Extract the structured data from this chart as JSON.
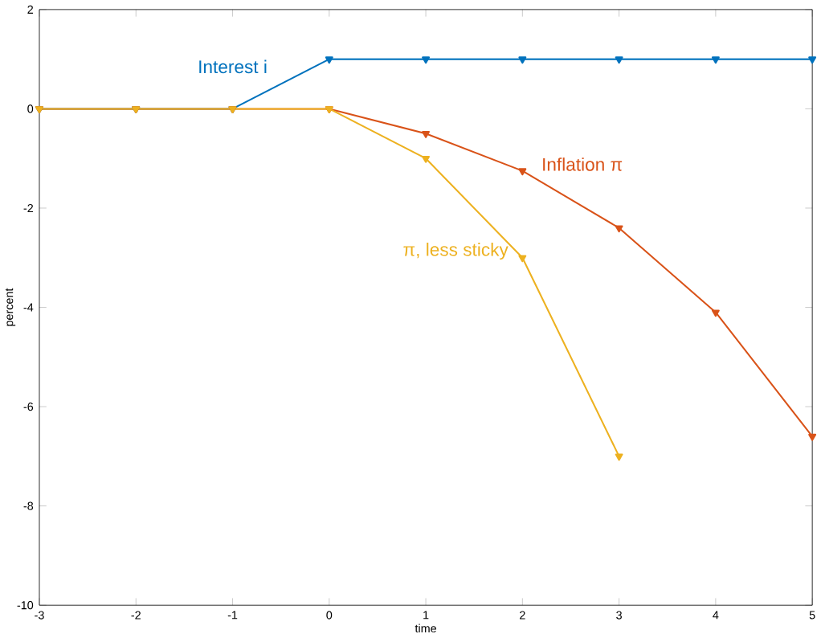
{
  "chart_data": {
    "type": "line",
    "xlabel": "time",
    "ylabel": "percent",
    "x": [
      -3,
      -2,
      -1,
      0,
      1,
      2,
      3,
      4,
      5
    ],
    "series": [
      {
        "name": "Interest i",
        "color": "#0072bd",
        "values": [
          0,
          0,
          0,
          1,
          1,
          1,
          1,
          1,
          1
        ]
      },
      {
        "name": "Inflation π",
        "color": "#d95319",
        "values": [
          0,
          0,
          0,
          0,
          -0.5,
          -1.25,
          -2.4,
          -4.1,
          -6.6
        ]
      },
      {
        "name": "π, less sticky",
        "color": "#edb120",
        "values": [
          0,
          0,
          0,
          0,
          -1,
          -3,
          -7,
          null,
          null
        ]
      }
    ],
    "xlim": [
      -3,
      5
    ],
    "ylim": [
      -10,
      2
    ],
    "xticks": [
      -3,
      -2,
      -1,
      0,
      1,
      2,
      3,
      4,
      5
    ],
    "yticks": [
      -10,
      -8,
      -6,
      -4,
      -2,
      0,
      2
    ],
    "marker": "triangle",
    "line_style": "solid",
    "grid": false,
    "legend": false
  }
}
